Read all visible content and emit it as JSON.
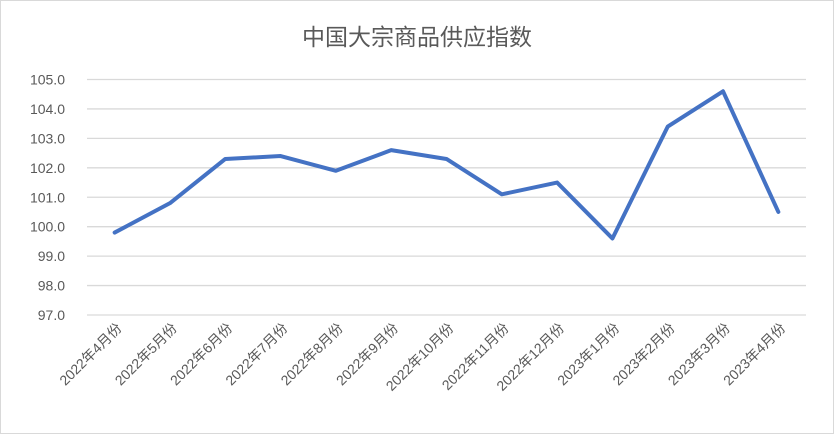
{
  "chart_data": {
    "type": "line",
    "title": "中国大宗商品供应指数",
    "xlabel": "",
    "ylabel": "",
    "categories": [
      "2022年4月份",
      "2022年5月份",
      "2022年6月份",
      "2022年7月份",
      "2022年8月份",
      "2022年9月份",
      "2022年10月份",
      "2022年11月份",
      "2022年12月份",
      "2023年1月份",
      "2023年2月份",
      "2023年3月份",
      "2023年4月份"
    ],
    "values": [
      99.8,
      100.8,
      102.3,
      102.4,
      101.9,
      102.6,
      102.3,
      101.1,
      101.5,
      99.6,
      103.4,
      104.6,
      100.5
    ],
    "ylim": [
      97,
      105
    ],
    "yticks": [
      "97.0",
      "98.0",
      "99.0",
      "100.0",
      "101.0",
      "102.0",
      "103.0",
      "104.0",
      "105.0"
    ],
    "grid": true,
    "legend": "none",
    "line_color": "#4472c4"
  }
}
